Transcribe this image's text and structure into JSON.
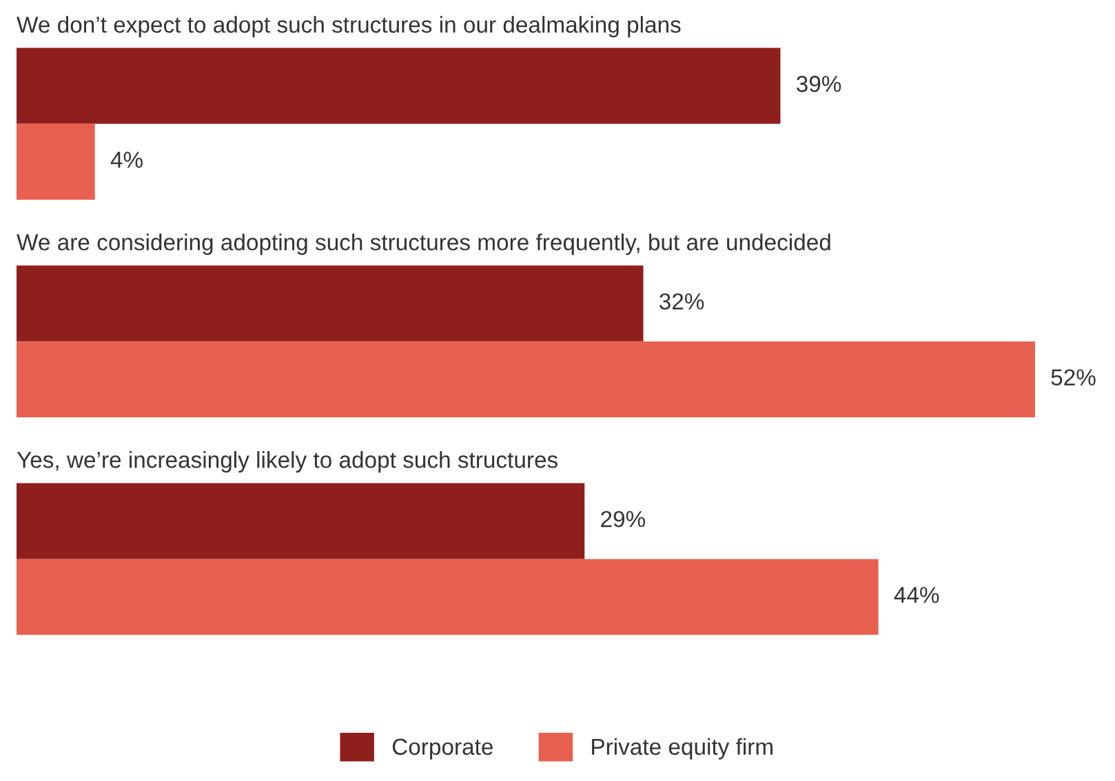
{
  "chart_data": {
    "type": "bar",
    "orientation": "horizontal",
    "categories": [
      "We don’t expect to adopt such structures in our dealmaking plans",
      "We are considering adopting such structures more frequently, but are undecided",
      "Yes, we’re increasingly likely to adopt such structures"
    ],
    "series": [
      {
        "name": "Corporate",
        "color": "#8f1f1d",
        "values": [
          39,
          32,
          29
        ],
        "value_labels": [
          "39%",
          "32%",
          "29%"
        ]
      },
      {
        "name": "Private equity firm",
        "color": "#e8604f",
        "values": [
          4,
          52,
          44
        ],
        "value_labels": [
          "4%",
          "52%",
          "44%"
        ]
      }
    ],
    "legend": "bottom"
  }
}
